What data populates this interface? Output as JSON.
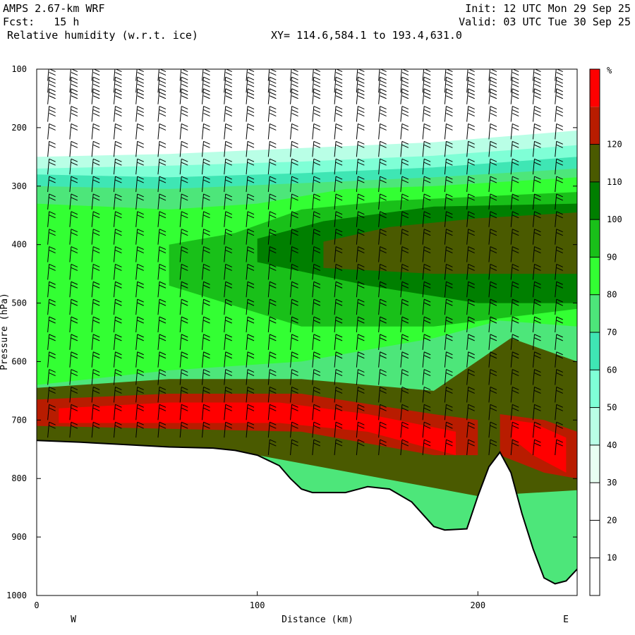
{
  "header": {
    "model": "AMPS 2.67-km WRF",
    "fcst": "Fcst:   15 h",
    "field": "Relative humidity (w.r.t. ice)",
    "xy": "XY= 114.6,584.1 to 193.4,631.0",
    "init": "Init: 12 UTC Mon 29 Sep 25",
    "valid": "Valid: 03 UTC Tue 30 Sep 25"
  },
  "chart_data": {
    "type": "heatmap",
    "xlabel": "Distance (km)",
    "ylabel": "Pressure (hPa)",
    "xlim": [
      0,
      245
    ],
    "ylim": [
      1000,
      100
    ],
    "x_ticks": [
      0,
      100,
      200
    ],
    "y_ticks": [
      100,
      200,
      300,
      400,
      500,
      600,
      700,
      800,
      900,
      1000
    ],
    "x_end_labels": {
      "left": "W",
      "right": "E"
    },
    "colorbar": {
      "unit": "%",
      "levels": [
        10,
        20,
        30,
        40,
        50,
        60,
        70,
        80,
        90,
        100,
        110,
        120
      ],
      "colors": [
        "#ffffff",
        "#ffffff",
        "#ffffff",
        "#e8fff2",
        "#b9ffe6",
        "#7fffd6",
        "#3fe6b4",
        "#4de67a",
        "#33ff33",
        "#19c019",
        "#007f00",
        "#4a5a00",
        "#b81c00",
        "#ff0000"
      ]
    },
    "terrain_pressure": [
      [
        0,
        735
      ],
      [
        20,
        738
      ],
      [
        40,
        742
      ],
      [
        60,
        746
      ],
      [
        80,
        748
      ],
      [
        90,
        752
      ],
      [
        100,
        760
      ],
      [
        110,
        778
      ],
      [
        115,
        800
      ],
      [
        120,
        818
      ],
      [
        125,
        824
      ],
      [
        140,
        824
      ],
      [
        150,
        814
      ],
      [
        160,
        818
      ],
      [
        170,
        840
      ],
      [
        180,
        882
      ],
      [
        185,
        888
      ],
      [
        195,
        886
      ],
      [
        200,
        830
      ],
      [
        205,
        780
      ],
      [
        210,
        755
      ],
      [
        215,
        790
      ],
      [
        220,
        860
      ],
      [
        225,
        920
      ],
      [
        230,
        970
      ],
      [
        235,
        980
      ],
      [
        240,
        975
      ],
      [
        245,
        955
      ]
    ],
    "layers": [
      {
        "name_level": 30,
        "color": "#b9ffe6",
        "bottom": [
          [
            0,
            980
          ],
          [
            245,
            980
          ]
        ],
        "top": [
          [
            0,
            250
          ],
          [
            60,
            245
          ],
          [
            120,
            235
          ],
          [
            180,
            225
          ],
          [
            245,
            205
          ]
        ]
      },
      {
        "name_level": 40,
        "color": "#7fffd6",
        "bottom": [
          [
            0,
            980
          ],
          [
            245,
            980
          ]
        ],
        "top": [
          [
            0,
            270
          ],
          [
            60,
            265
          ],
          [
            120,
            258
          ],
          [
            180,
            248
          ],
          [
            245,
            230
          ]
        ]
      },
      {
        "name_level": 50,
        "color": "#3fe6b4",
        "bottom": [
          [
            0,
            980
          ],
          [
            245,
            980
          ]
        ],
        "top": [
          [
            0,
            280
          ],
          [
            60,
            285
          ],
          [
            120,
            278
          ],
          [
            180,
            268
          ],
          [
            245,
            250
          ]
        ]
      },
      {
        "name_level": 60,
        "color": "#4de67a",
        "bottom": [
          [
            0,
            980
          ],
          [
            245,
            980
          ]
        ],
        "top": [
          [
            0,
            300
          ],
          [
            60,
            305
          ],
          [
            120,
            295
          ],
          [
            180,
            285
          ],
          [
            245,
            270
          ]
        ]
      },
      {
        "name_level": 70,
        "color": "#33ff33",
        "bottom": [
          [
            0,
            640
          ],
          [
            60,
            615
          ],
          [
            120,
            600
          ],
          [
            180,
            560
          ],
          [
            210,
            530
          ],
          [
            245,
            540
          ]
        ],
        "top": [
          [
            0,
            330
          ],
          [
            60,
            340
          ],
          [
            100,
            330
          ],
          [
            140,
            305
          ],
          [
            180,
            300
          ],
          [
            245,
            285
          ]
        ]
      },
      {
        "name_level": 80,
        "color": "#19c019",
        "bottom": [
          [
            60,
            470
          ],
          [
            120,
            540
          ],
          [
            180,
            540
          ],
          [
            245,
            510
          ]
        ],
        "top": [
          [
            60,
            400
          ],
          [
            90,
            380
          ],
          [
            120,
            340
          ],
          [
            160,
            325
          ],
          [
            245,
            310
          ]
        ]
      },
      {
        "name_level": 90,
        "color": "#007f00",
        "bottom": [
          [
            100,
            430
          ],
          [
            150,
            470
          ],
          [
            200,
            500
          ],
          [
            245,
            500
          ]
        ],
        "top": [
          [
            100,
            390
          ],
          [
            130,
            360
          ],
          [
            180,
            335
          ],
          [
            245,
            330
          ]
        ]
      },
      {
        "name_level": 100,
        "color": "#4a5a00",
        "bottom": [
          [
            130,
            440
          ],
          [
            180,
            450
          ],
          [
            230,
            450
          ],
          [
            245,
            450
          ]
        ],
        "top": [
          [
            130,
            395
          ],
          [
            160,
            370
          ],
          [
            200,
            355
          ],
          [
            245,
            345
          ]
        ]
      },
      {
        "name_level": 100,
        "color": "#4a5a00",
        "bottom": [
          [
            0,
            735
          ],
          [
            100,
            760
          ],
          [
            200,
            830
          ],
          [
            245,
            820
          ]
        ],
        "top": [
          [
            0,
            645
          ],
          [
            60,
            630
          ],
          [
            120,
            630
          ],
          [
            180,
            650
          ],
          [
            215,
            560
          ],
          [
            245,
            600
          ]
        ]
      },
      {
        "name_level": 110,
        "color": "#b81c00",
        "bottom": [
          [
            0,
            710
          ],
          [
            60,
            715
          ],
          [
            120,
            720
          ],
          [
            180,
            760
          ],
          [
            200,
            760
          ]
        ],
        "top": [
          [
            0,
            665
          ],
          [
            60,
            655
          ],
          [
            120,
            655
          ],
          [
            180,
            690
          ],
          [
            200,
            700
          ]
        ]
      },
      {
        "name_level": 110,
        "color": "#b81c00",
        "bottom": [
          [
            210,
            760
          ],
          [
            230,
            790
          ],
          [
            245,
            800
          ]
        ],
        "top": [
          [
            210,
            690
          ],
          [
            230,
            700
          ],
          [
            245,
            720
          ]
        ]
      },
      {
        "name_level": 120,
        "color": "#ff0000",
        "bottom": [
          [
            10,
            705
          ],
          [
            60,
            705
          ],
          [
            110,
            705
          ],
          [
            150,
            720
          ],
          [
            190,
            760
          ]
        ],
        "top": [
          [
            10,
            680
          ],
          [
            60,
            670
          ],
          [
            110,
            670
          ],
          [
            150,
            690
          ],
          [
            190,
            720
          ]
        ]
      },
      {
        "name_level": 120,
        "color": "#ff0000",
        "bottom": [
          [
            215,
            730
          ],
          [
            225,
            760
          ],
          [
            240,
            790
          ]
        ],
        "top": [
          [
            215,
            700
          ],
          [
            225,
            705
          ],
          [
            240,
            730
          ]
        ]
      }
    ],
    "wind_barbs": {
      "columns_km": [
        5,
        15,
        25,
        35,
        45,
        55,
        65,
        75,
        85,
        95,
        105,
        115,
        125,
        135,
        145,
        155,
        165,
        175,
        185,
        195,
        205,
        215,
        225,
        235
      ],
      "levels_hpa": [
        120,
        140,
        160,
        190,
        220,
        250,
        280,
        310,
        340,
        370,
        400,
        430,
        460,
        490,
        520,
        550,
        580,
        610,
        640,
        670,
        700,
        730,
        760
      ]
    }
  }
}
